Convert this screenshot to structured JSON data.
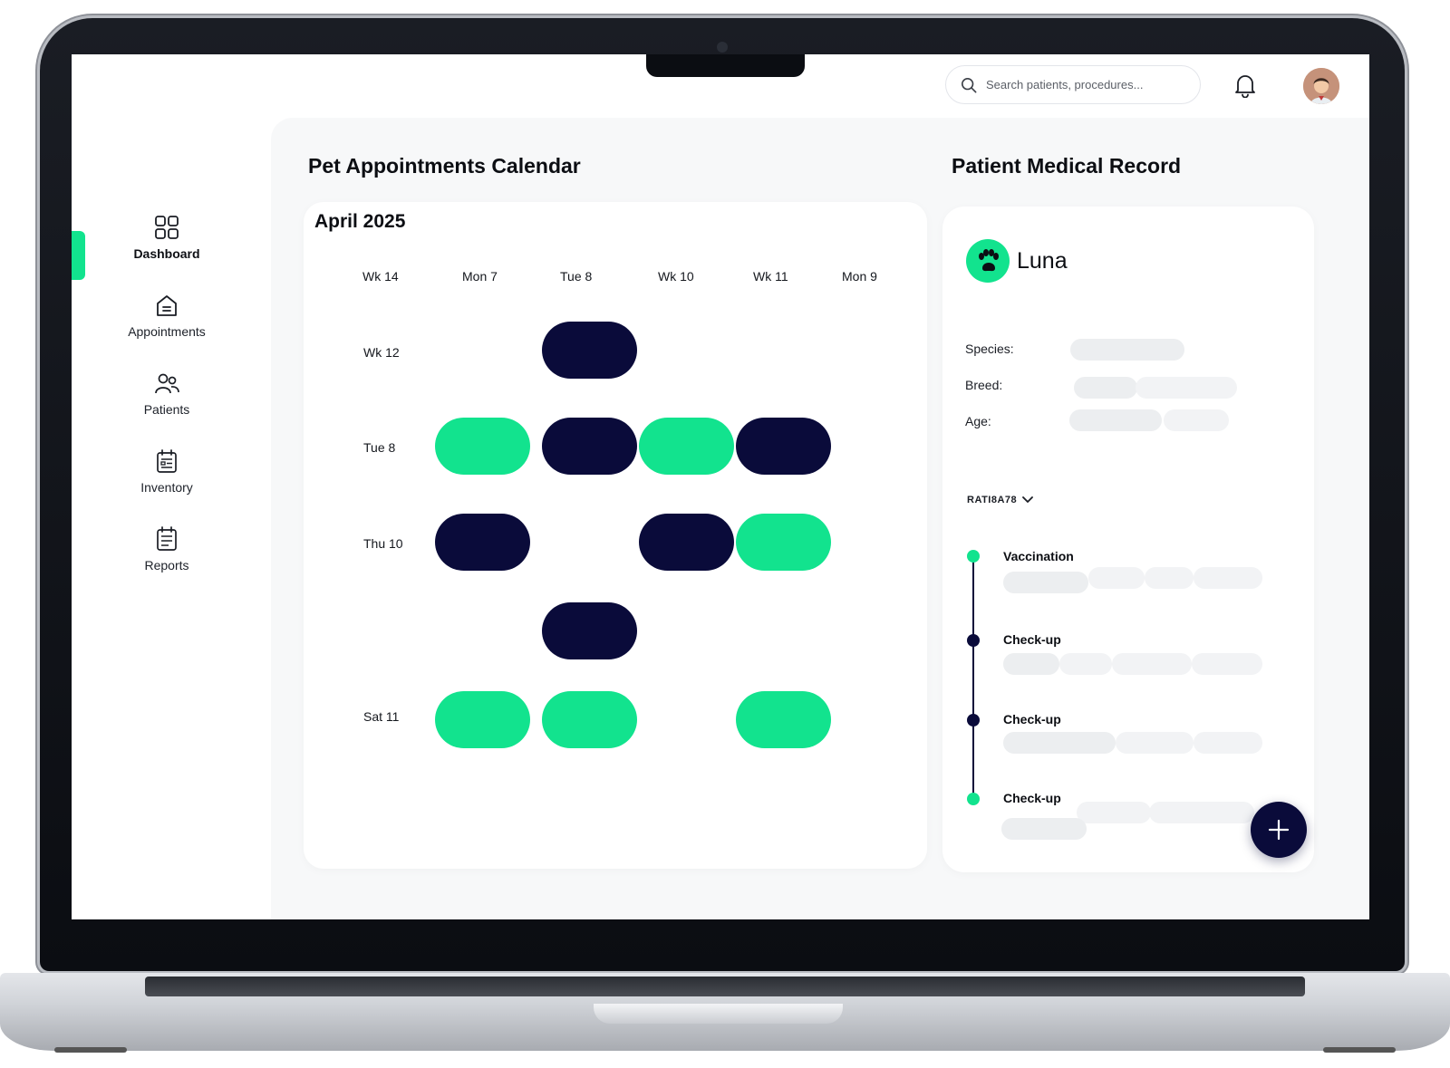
{
  "topbar": {
    "search_placeholder": "Search patients, procedures...",
    "icons": [
      "search-icon",
      "bell-icon",
      "avatar"
    ]
  },
  "sidebar": {
    "items": [
      {
        "label": "Dashboard",
        "icon": "grid-icon",
        "active": true
      },
      {
        "label": "Appointments",
        "icon": "home-icon",
        "active": false
      },
      {
        "label": "Patients",
        "icon": "users-icon",
        "active": false
      },
      {
        "label": "Inventory",
        "icon": "clipboard-list-icon",
        "active": false
      },
      {
        "label": "Reports",
        "icon": "report-icon",
        "active": false
      }
    ]
  },
  "calendar": {
    "title": "Pet Appointments Calendar",
    "month": "April 2025",
    "columns": [
      "Wk 14",
      "Mon 7",
      "Tue 8",
      "Wk 10",
      "Wk 11",
      "Mon 9"
    ],
    "rows": [
      "Wk 12",
      "Tue 8",
      "Thu 10",
      "Sat 11"
    ],
    "colors": {
      "green": "#12e38e",
      "navy": "#0a0b3a"
    },
    "appointments": [
      {
        "row": "Wk 12",
        "column": "Tue 8",
        "color": "navy"
      },
      {
        "row": "Tue 8",
        "column": "Mon 7",
        "color": "green"
      },
      {
        "row": "Tue 8",
        "column": "Tue 8",
        "color": "navy"
      },
      {
        "row": "Tue 8",
        "column": "Wk 10",
        "color": "green"
      },
      {
        "row": "Tue 8",
        "column": "Wk 11",
        "color": "navy"
      },
      {
        "row": "Thu 10",
        "column": "Mon 7",
        "color": "navy"
      },
      {
        "row": "Thu 10",
        "column": "Wk 10",
        "color": "navy"
      },
      {
        "row": "Thu 10",
        "column": "Wk 11",
        "color": "green"
      },
      {
        "row": "(unlabeled)",
        "column": "Tue 8",
        "color": "navy"
      },
      {
        "row": "Sat 11",
        "column": "Mon 7",
        "color": "green"
      },
      {
        "row": "Sat 11",
        "column": "Tue 8",
        "color": "green"
      },
      {
        "row": "Sat 11",
        "column": "Wk 11",
        "color": "green"
      }
    ]
  },
  "record": {
    "title": "Patient Medical Record",
    "pet_name": "Luna",
    "fields": [
      {
        "label": "Species:"
      },
      {
        "label": "Breed:"
      },
      {
        "label": "Age:"
      }
    ],
    "history_toggle": "RATI8A78",
    "timeline": [
      {
        "title": "Vaccination",
        "dot": "green"
      },
      {
        "title": "Check-up",
        "dot": "navy"
      },
      {
        "title": "Check-up",
        "dot": "navy"
      },
      {
        "title": "Check-up",
        "dot": "green"
      }
    ],
    "fab_icon": "plus-icon"
  }
}
